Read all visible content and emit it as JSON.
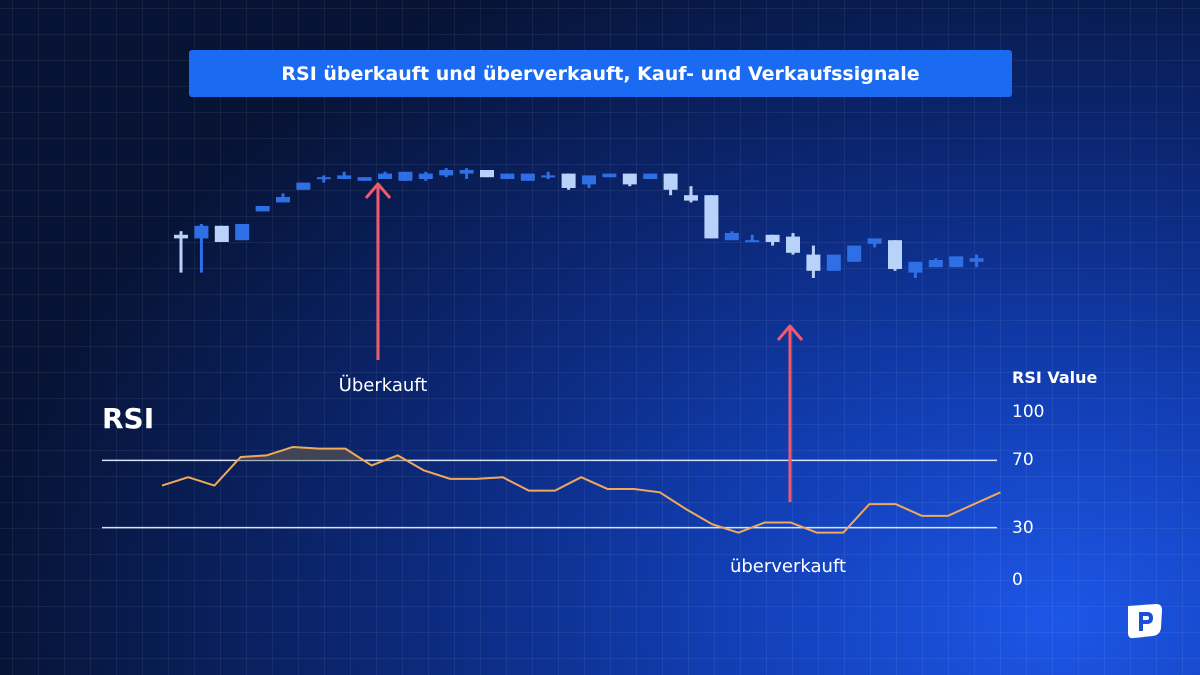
{
  "title": "RSI überkauft und überverkauft, Kauf- und Verkaufssignale",
  "annotations": {
    "overbought_label": "Überkauft",
    "oversold_label": "überverkauft"
  },
  "rsi_panel": {
    "label": "RSI",
    "axis_title": "RSI Value"
  },
  "logo": {
    "icon": "pepperstone-logo-icon"
  },
  "colors": {
    "bullish_candle": "#2f6fe6",
    "bearish_candle": "#b9d2fa",
    "rsi_line": "#f0a95a",
    "arrow": "#f05a6e",
    "threshold_line": "#d8e2f6",
    "title_banner": "#1a6af2"
  },
  "chart_data": [
    {
      "type": "candlestick",
      "series": [
        {
          "o": 49,
          "h": 51,
          "l": 28,
          "c": 47
        },
        {
          "o": 47,
          "h": 55,
          "l": 28,
          "c": 54
        },
        {
          "o": 54,
          "h": 54,
          "l": 45,
          "c": 45
        },
        {
          "o": 46,
          "h": 55,
          "l": 46,
          "c": 55
        },
        {
          "o": 62,
          "h": 65,
          "l": 62,
          "c": 65
        },
        {
          "o": 67,
          "h": 72,
          "l": 67,
          "c": 70
        },
        {
          "o": 74,
          "h": 78,
          "l": 74,
          "c": 78
        },
        {
          "o": 80,
          "h": 82,
          "l": 78,
          "c": 81
        },
        {
          "o": 80,
          "h": 84,
          "l": 80,
          "c": 82
        },
        {
          "o": 79,
          "h": 81,
          "l": 79,
          "c": 81
        },
        {
          "o": 80,
          "h": 84,
          "l": 80,
          "c": 83
        },
        {
          "o": 79,
          "h": 84,
          "l": 79,
          "c": 84
        },
        {
          "o": 80,
          "h": 84,
          "l": 79,
          "c": 83
        },
        {
          "o": 82,
          "h": 86,
          "l": 81,
          "c": 85
        },
        {
          "o": 83,
          "h": 86,
          "l": 80,
          "c": 85
        },
        {
          "o": 85,
          "h": 85,
          "l": 81,
          "c": 81
        },
        {
          "o": 80,
          "h": 83,
          "l": 80,
          "c": 83
        },
        {
          "o": 79,
          "h": 83,
          "l": 79,
          "c": 83
        },
        {
          "o": 82,
          "h": 84,
          "l": 80,
          "c": 82
        },
        {
          "o": 83,
          "h": 83,
          "l": 74,
          "c": 75
        },
        {
          "o": 77,
          "h": 82,
          "l": 75,
          "c": 82
        },
        {
          "o": 81,
          "h": 83,
          "l": 81,
          "c": 83
        },
        {
          "o": 83,
          "h": 83,
          "l": 76,
          "c": 77
        },
        {
          "o": 80,
          "h": 83,
          "l": 80,
          "c": 83
        },
        {
          "o": 83,
          "h": 83,
          "l": 71,
          "c": 74
        },
        {
          "o": 71,
          "h": 76,
          "l": 67,
          "c": 68
        },
        {
          "o": 71,
          "h": 71,
          "l": 47,
          "c": 47
        },
        {
          "o": 46,
          "h": 51,
          "l": 46,
          "c": 50
        },
        {
          "o": 46,
          "h": 49,
          "l": 45,
          "c": 46
        },
        {
          "o": 49,
          "h": 49,
          "l": 43,
          "c": 45
        },
        {
          "o": 48,
          "h": 50,
          "l": 38,
          "c": 39
        },
        {
          "o": 38,
          "h": 43,
          "l": 25,
          "c": 29
        },
        {
          "o": 29,
          "h": 38,
          "l": 29,
          "c": 38
        },
        {
          "o": 34,
          "h": 43,
          "l": 34,
          "c": 43
        },
        {
          "o": 44,
          "h": 47,
          "l": 42,
          "c": 47
        },
        {
          "o": 46,
          "h": 46,
          "l": 29,
          "c": 30
        },
        {
          "o": 28,
          "h": 34,
          "l": 25,
          "c": 34
        },
        {
          "o": 31,
          "h": 36,
          "l": 31,
          "c": 35
        },
        {
          "o": 31,
          "h": 37,
          "l": 31,
          "c": 37
        },
        {
          "o": 34,
          "h": 38,
          "l": 31,
          "c": 36
        }
      ]
    },
    {
      "type": "line",
      "ylabel": "RSI Value",
      "ylim": [
        0,
        100
      ],
      "y_ticks": [
        "100",
        "70",
        "30",
        "0"
      ],
      "thresholds": [
        70,
        30
      ],
      "series": [
        {
          "values": [
            55,
            60,
            55,
            72,
            73,
            78,
            77,
            77,
            67,
            73,
            64,
            59,
            59,
            60,
            52,
            52,
            60,
            53,
            53,
            51,
            41,
            32,
            27,
            33,
            33,
            27,
            27,
            44,
            44,
            37,
            37,
            44,
            51
          ]
        }
      ]
    }
  ]
}
